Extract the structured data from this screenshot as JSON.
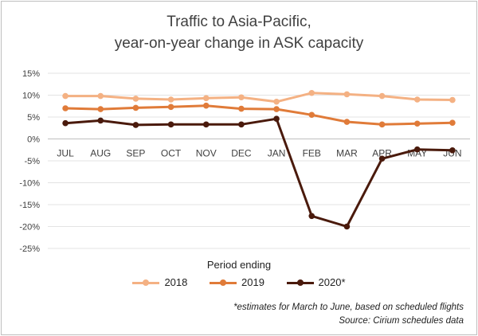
{
  "chart_data": {
    "type": "line",
    "title_line1": "Traffic to Asia-Pacific,",
    "title_line2": "year-on-year change in ASK capacity",
    "xlabel": "Period ending",
    "ylabel": "",
    "categories": [
      "JUL",
      "AUG",
      "SEP",
      "OCT",
      "NOV",
      "DEC",
      "JAN",
      "FEB",
      "MAR",
      "APR",
      "MAY",
      "JUN"
    ],
    "yticks": [
      "15%",
      "10%",
      "5%",
      "0%",
      "-5%",
      "-10%",
      "-15%",
      "-20%",
      "-25%"
    ],
    "ylim": [
      -25,
      15
    ],
    "grid": true,
    "legend_position": "bottom",
    "series": [
      {
        "name": "2018",
        "color": "#f4b183",
        "values": [
          9.8,
          9.8,
          9.2,
          9.0,
          9.3,
          9.5,
          8.5,
          10.5,
          10.2,
          9.8,
          9.0,
          8.9
        ]
      },
      {
        "name": "2019",
        "color": "#e07b39",
        "values": [
          7.0,
          6.8,
          7.1,
          7.3,
          7.6,
          6.9,
          6.8,
          5.5,
          3.9,
          3.3,
          3.5,
          3.7
        ]
      },
      {
        "name": "2020*",
        "color": "#4a1a0c",
        "values": [
          3.6,
          4.2,
          3.2,
          3.3,
          3.3,
          3.3,
          4.6,
          -17.6,
          -20.0,
          -4.5,
          -2.4,
          -2.6
        ]
      }
    ],
    "notes": [
      "*estimates for March to June, based on scheduled flights",
      "Source:  Cirium schedules data"
    ]
  }
}
